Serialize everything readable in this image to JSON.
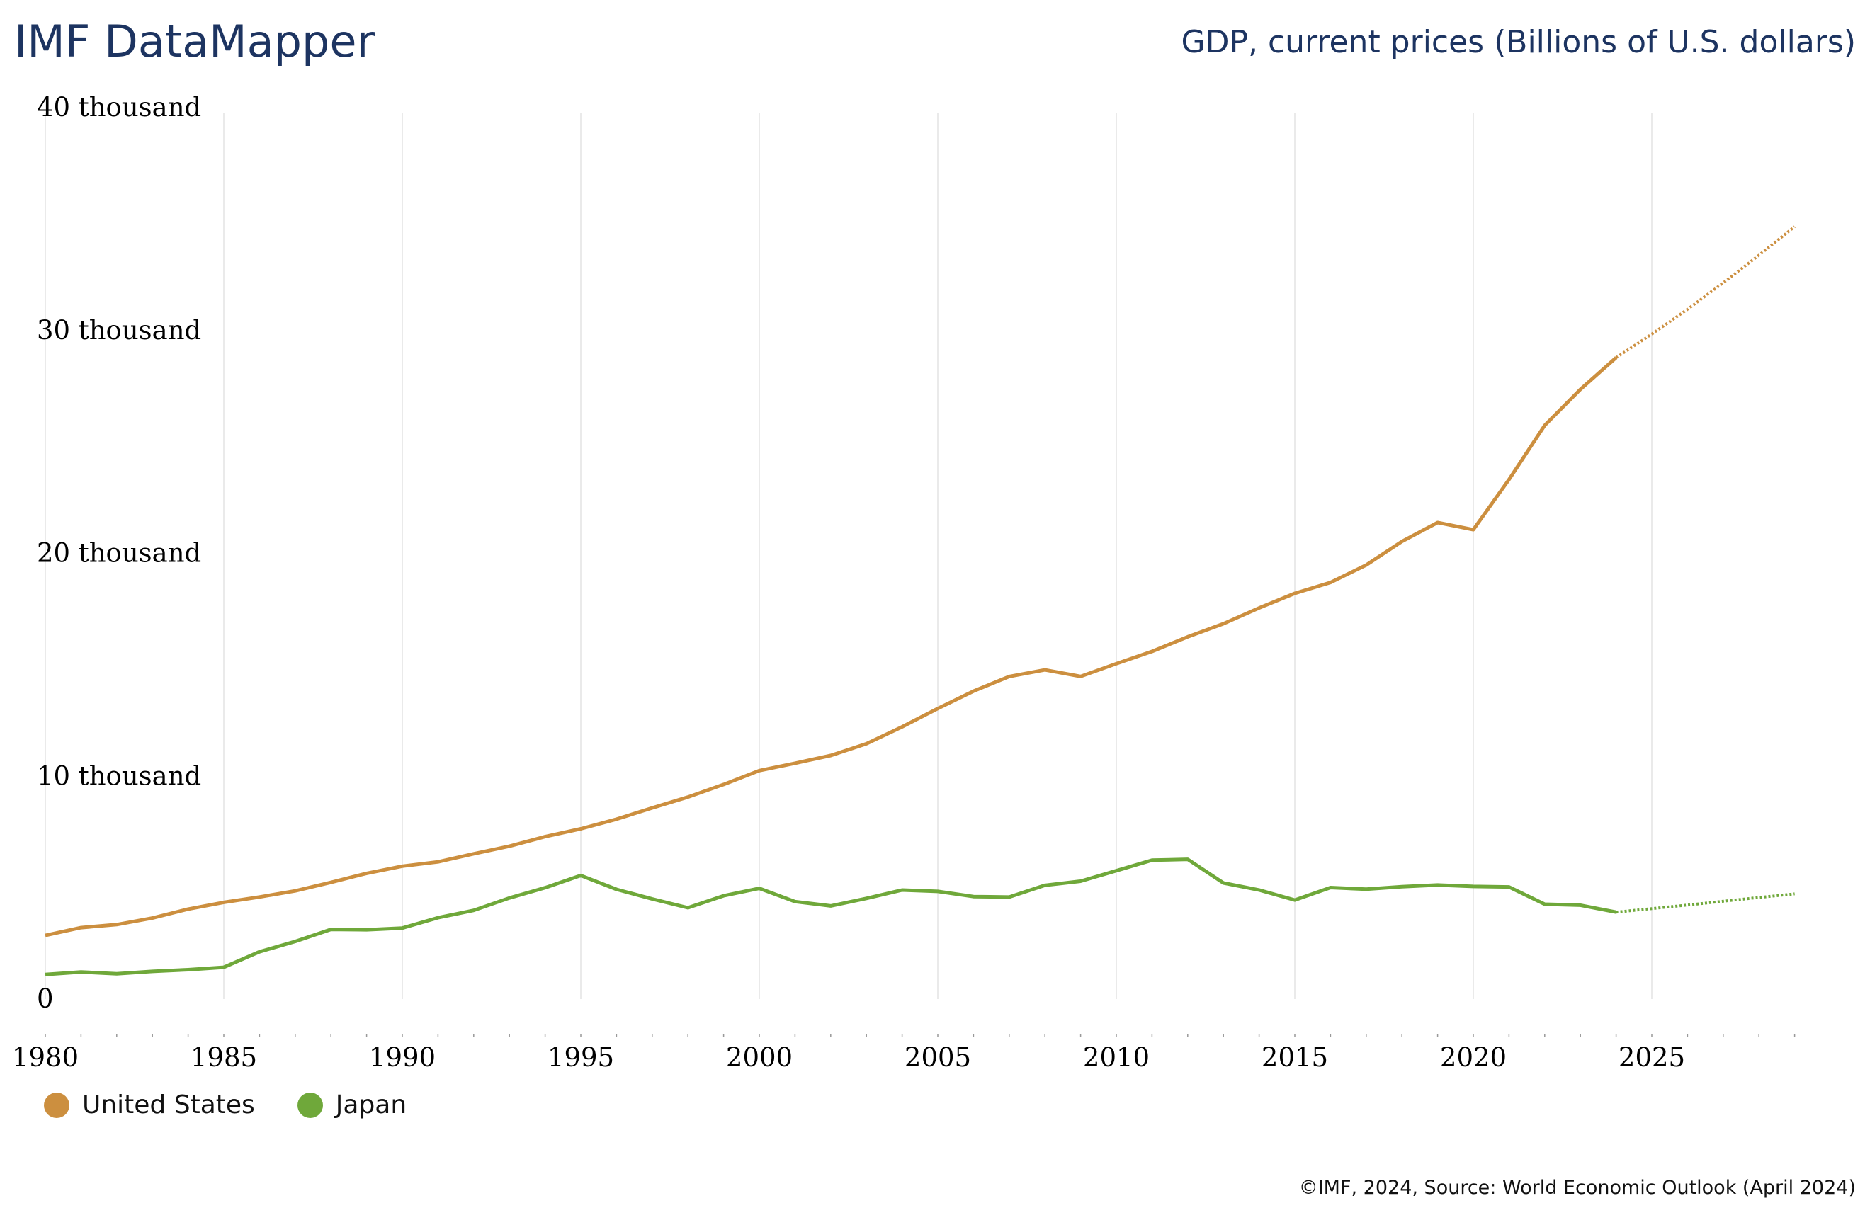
{
  "header": {
    "brand": "IMF DataMapper",
    "indicator": "GDP, current prices (Billions of U.S. dollars)"
  },
  "footer": {
    "source": "©IMF, 2024, Source: World Economic Outlook (April 2024)"
  },
  "chart_data": {
    "type": "line",
    "title": "GDP, current prices (Billions of U.S. dollars)",
    "xlim": [
      1980,
      2029
    ],
    "ylim": [
      0,
      40000
    ],
    "yticks": [
      {
        "v": 0,
        "label": "0"
      },
      {
        "v": 10000,
        "label": "10 thousand"
      },
      {
        "v": 20000,
        "label": "20 thousand"
      },
      {
        "v": 30000,
        "label": "30 thousand"
      },
      {
        "v": 40000,
        "label": "40 thousand"
      }
    ],
    "xticks": [
      1980,
      1985,
      1990,
      1995,
      2000,
      2005,
      2010,
      2015,
      2020,
      2025
    ],
    "projection_start": 2024,
    "grid": "vertical",
    "legend_position": "bottom-left",
    "x": [
      1980,
      1981,
      1982,
      1983,
      1984,
      1985,
      1986,
      1987,
      1988,
      1989,
      1990,
      1991,
      1992,
      1993,
      1994,
      1995,
      1996,
      1997,
      1998,
      1999,
      2000,
      2001,
      2002,
      2003,
      2004,
      2005,
      2006,
      2007,
      2008,
      2009,
      2010,
      2011,
      2012,
      2013,
      2014,
      2015,
      2016,
      2017,
      2018,
      2019,
      2020,
      2021,
      2022,
      2023,
      2024,
      2025,
      2026,
      2027,
      2028,
      2029
    ],
    "series": [
      {
        "name": "United States",
        "color": "#cc8f3f",
        "values": [
          2857,
          3207,
          3343,
          3634,
          4037,
          4339,
          4580,
          4855,
          5236,
          5642,
          5963,
          6158,
          6520,
          6859,
          7287,
          7640,
          8073,
          8578,
          9063,
          9631,
          10251,
          10582,
          10929,
          11456,
          12217,
          13039,
          13816,
          14474,
          14770,
          14478,
          15049,
          15600,
          16254,
          16843,
          17551,
          18206,
          18695,
          19477,
          20533,
          21381,
          21060,
          23315,
          25744,
          27358,
          28781,
          29840,
          30950,
          32140,
          33380,
          34660
        ]
      },
      {
        "name": "Japan",
        "color": "#6fa83a",
        "values": [
          1105,
          1218,
          1134,
          1243,
          1318,
          1427,
          2121,
          2585,
          3125,
          3109,
          3186,
          3649,
          3980,
          4537,
          4998,
          5546,
          4923,
          4492,
          4098,
          4636,
          4968,
          4374,
          4182,
          4519,
          4893,
          4831,
          4601,
          4579,
          5106,
          5289,
          5759,
          6234,
          6272,
          5212,
          4897,
          4445,
          5004,
          4931,
          5041,
          5118,
          5055,
          5034,
          4256,
          4213,
          3900,
          4060,
          4220,
          4390,
          4560,
          4720
        ]
      }
    ]
  }
}
